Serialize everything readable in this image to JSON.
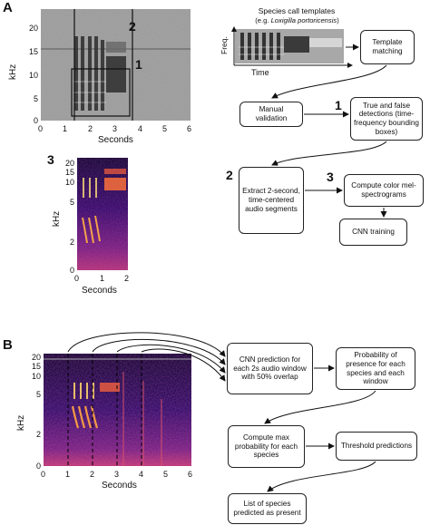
{
  "panels": {
    "A": "A",
    "B": "B",
    "markers": [
      "1",
      "2",
      "3"
    ]
  },
  "axes": {
    "khz_label": "kHz",
    "seconds_label": "Seconds",
    "main_yticks": [
      "0",
      "5",
      "10",
      "15",
      "20"
    ],
    "main_xticks": [
      "0",
      "1",
      "2",
      "3",
      "4",
      "5",
      "6"
    ],
    "small_yticks": [
      "0",
      "2",
      "5",
      "10",
      "15",
      "20"
    ],
    "small_xticks": [
      "0",
      "1",
      "2"
    ],
    "b_yticks": [
      "0",
      "2",
      "5",
      "10",
      "15",
      "20"
    ],
    "b_xticks": [
      "0",
      "1",
      "2",
      "3",
      "4",
      "5",
      "6"
    ]
  },
  "templates": {
    "title": "Species call templates",
    "subtitle_prefix": "(e.g. ",
    "subtitle_species": "Loxigilla portoricensis",
    "subtitle_suffix": ")",
    "freq_label": "Freq.",
    "time_label": "Time"
  },
  "flow_a": {
    "template_matching": "Template matching",
    "manual_validation": "Manual validation",
    "detections": "True and false detections (time-frequency bounding boxes)",
    "extract": "Extract 2-second, time-centered audio segments",
    "mel": "Compute color mel-spectrograms",
    "cnn_training": "CNN training"
  },
  "flow_b": {
    "cnn_prediction": "CNN prediction for each 2s audio window with 50% overlap",
    "probability": "Probability of presence for each species and each window",
    "max_prob": "Compute max probability for each species",
    "threshold": "Threshold predictions",
    "species_list": "List of species predicted as present"
  }
}
